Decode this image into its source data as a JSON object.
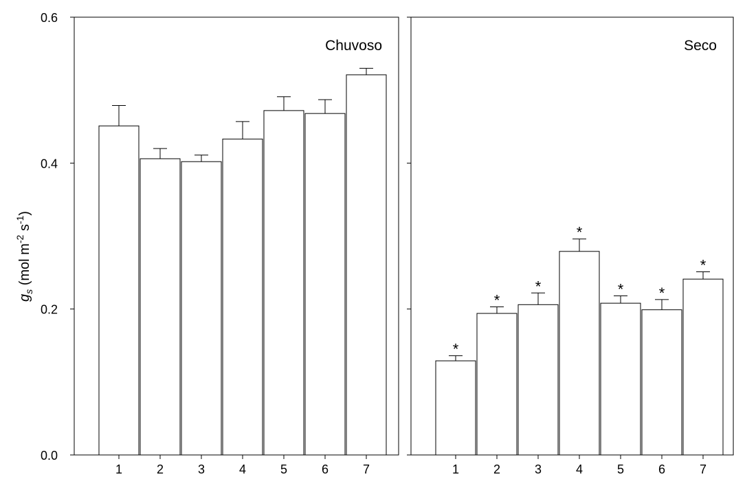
{
  "chart_data": {
    "type": "bar",
    "ylabel": {
      "main": "g",
      "sub": "s",
      "unit_open": " (mol m",
      "exp1": "-2",
      "unit_mid": " s",
      "exp2": "-1",
      "unit_close": ")"
    },
    "ylim": [
      0.0,
      0.6
    ],
    "yticks": [
      "0.0",
      "0.2",
      "0.4",
      "0.6"
    ],
    "yticks_values": [
      0.0,
      0.2,
      0.4,
      0.6
    ],
    "grid": false,
    "panels": [
      {
        "title": "Chuvoso",
        "categories": [
          "1",
          "2",
          "3",
          "4",
          "5",
          "6",
          "7"
        ],
        "values": [
          0.451,
          0.406,
          0.402,
          0.433,
          0.472,
          0.468,
          0.521
        ],
        "errors": [
          0.028,
          0.014,
          0.009,
          0.024,
          0.019,
          0.019,
          0.009
        ],
        "annotations": [
          "",
          "",
          "",
          "",
          "",
          "",
          ""
        ]
      },
      {
        "title": "Seco",
        "categories": [
          "1",
          "2",
          "3",
          "4",
          "5",
          "6",
          "7"
        ],
        "values": [
          0.129,
          0.194,
          0.206,
          0.279,
          0.208,
          0.199,
          0.241
        ],
        "errors": [
          0.007,
          0.009,
          0.016,
          0.017,
          0.01,
          0.014,
          0.01
        ],
        "annotations": [
          "*",
          "*",
          "*",
          "*",
          "*",
          "*",
          "*"
        ]
      }
    ]
  }
}
